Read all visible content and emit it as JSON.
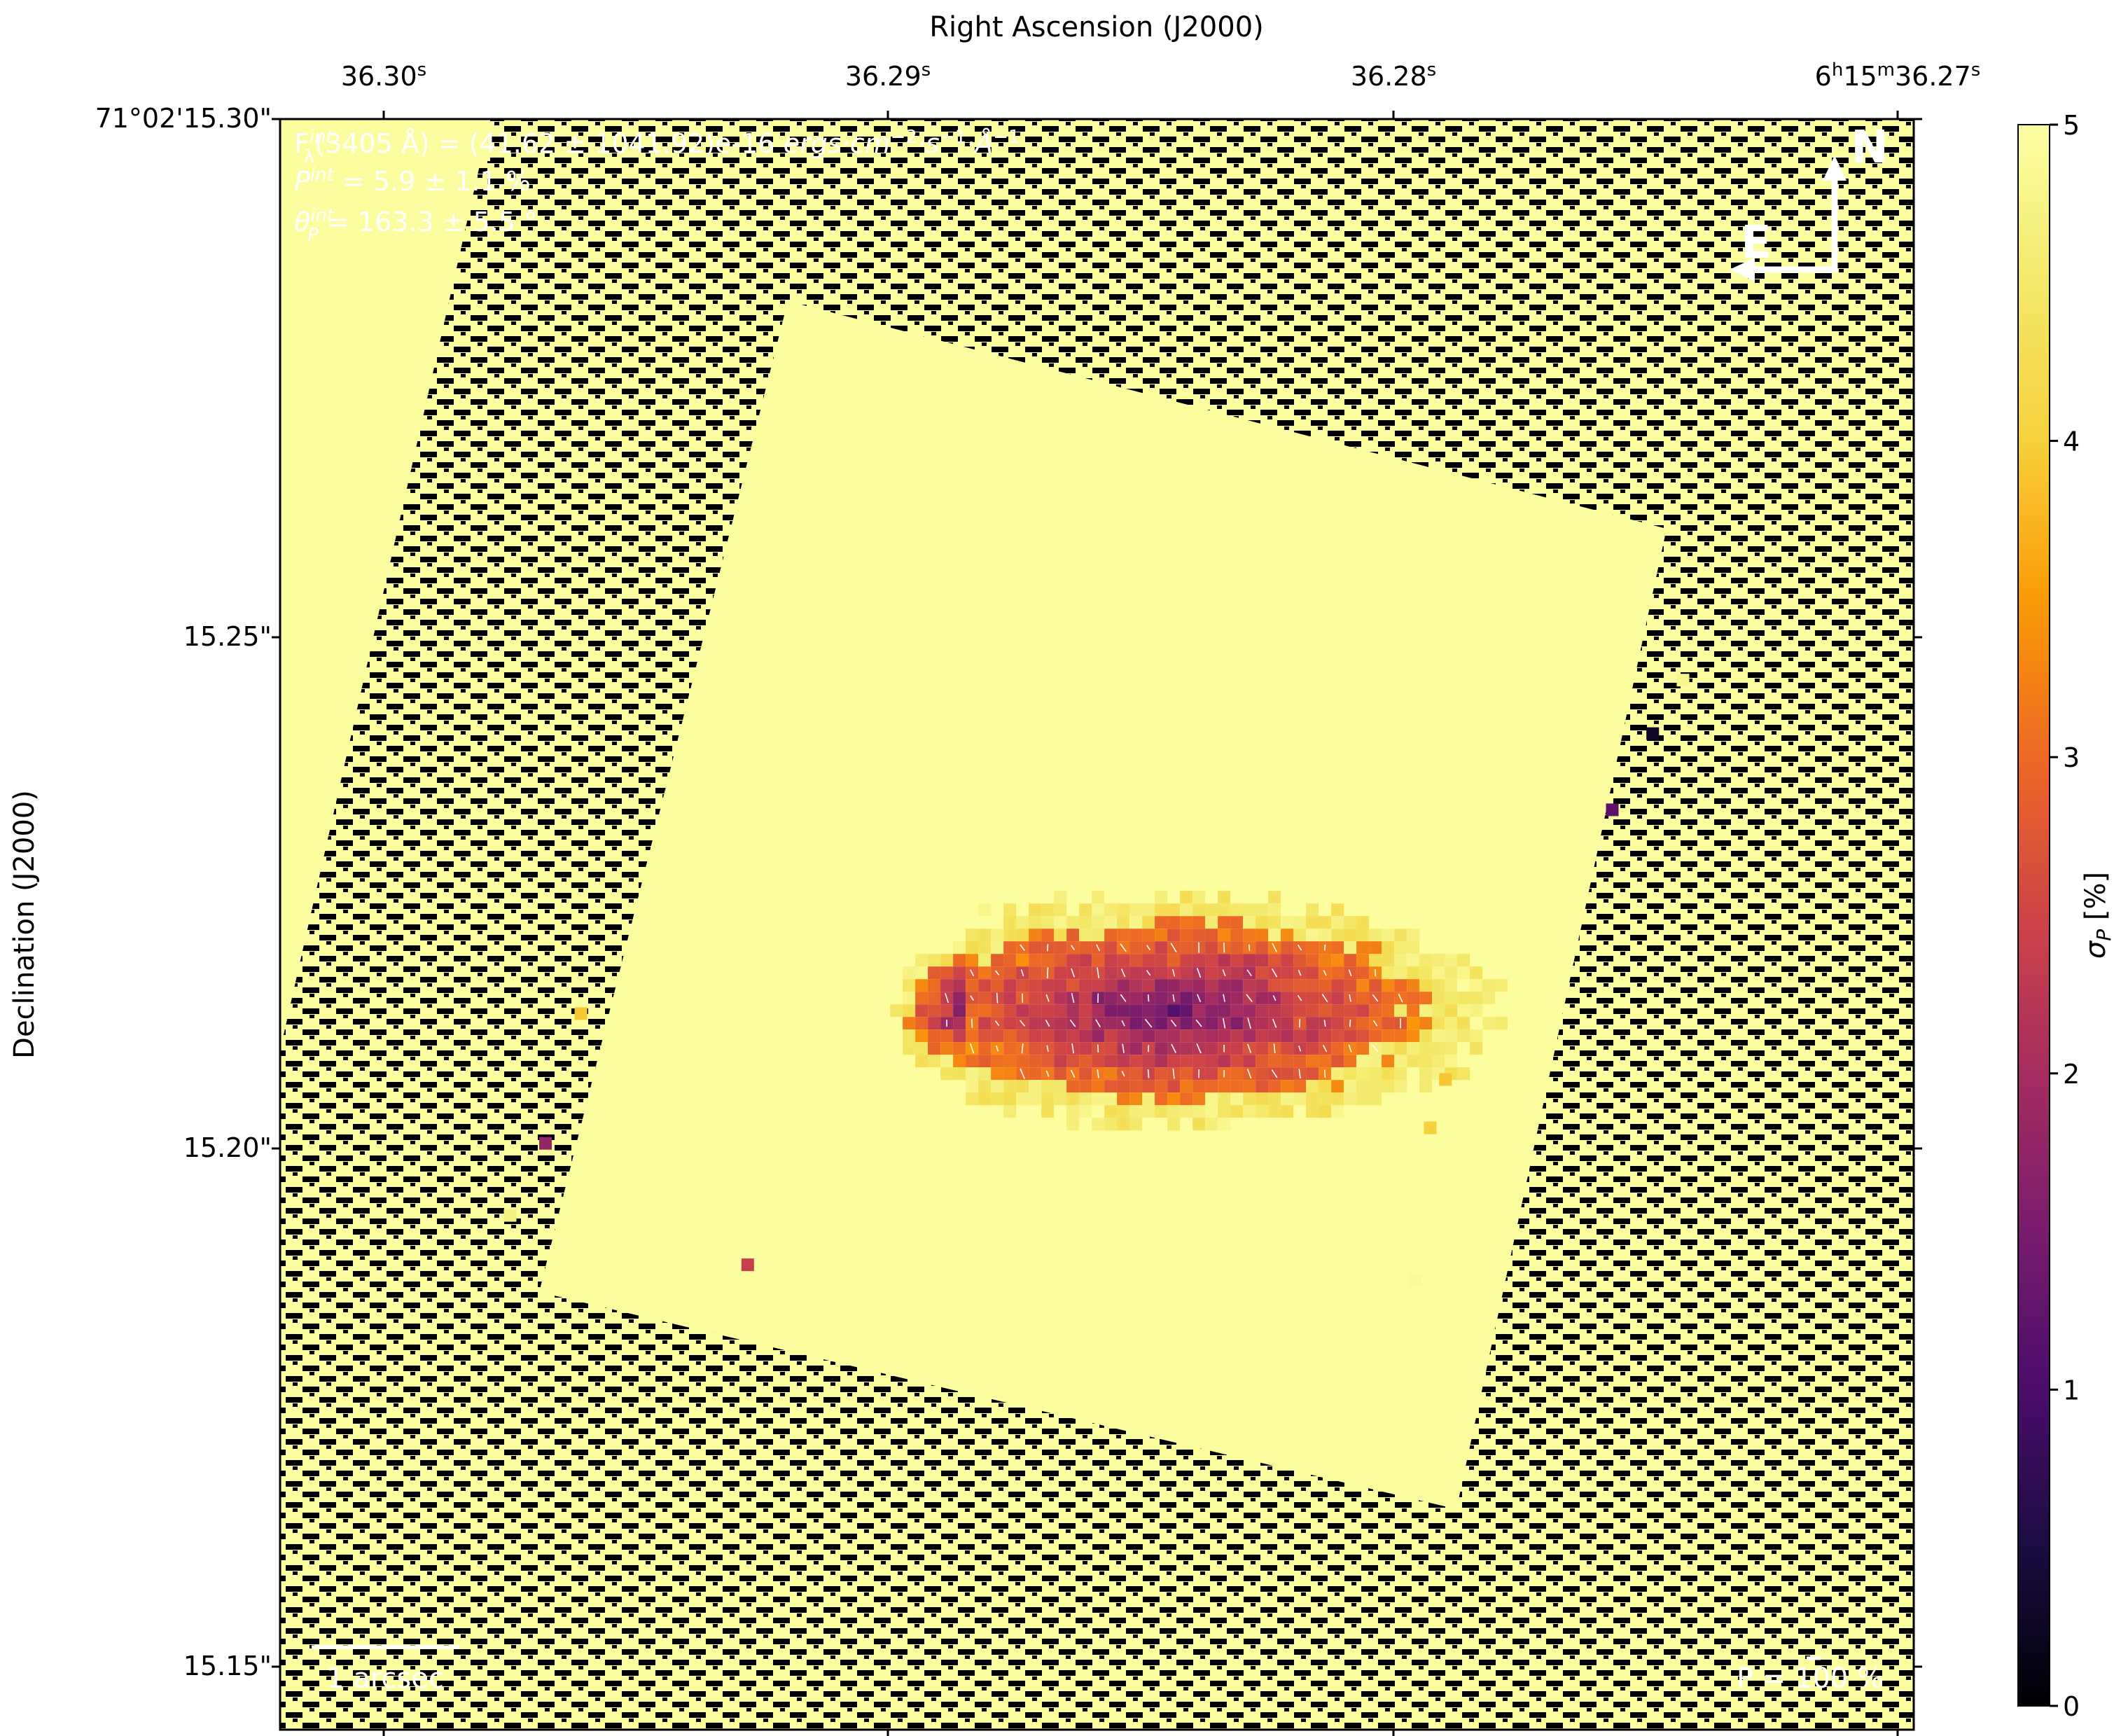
{
  "chart_data": {
    "type": "heatmap",
    "title": "",
    "xlabel": "Right Ascension (J2000)",
    "ylabel": "Declination (J2000)",
    "x_ticks": [
      {
        "label": "36.30",
        "sup": "s",
        "prefix": ""
      },
      {
        "label": "36.29",
        "sup": "s",
        "prefix": ""
      },
      {
        "label": "36.28",
        "sup": "s",
        "prefix": ""
      },
      {
        "label": "36.27",
        "sup": "s",
        "prefix": "6h15m"
      }
    ],
    "y_ticks": [
      "71°02'15.30\"",
      "15.25\"",
      "15.20\"",
      "15.15\""
    ],
    "colorbar": {
      "label": "σP [%]",
      "ticks": [
        "0",
        "1",
        "2",
        "3",
        "4",
        "5"
      ],
      "range": [
        0,
        5
      ],
      "cmap": "inferno"
    },
    "annotations": {
      "flux_line": "Fλint(3405 Å) = (41.62 ± 1041.92)e-16 ergs·cm−2·s−1·Å−1",
      "p_line": "Pint = 5.9 ± 1.1 %",
      "theta_line": "θPint = 163.3 ± 5.5 °",
      "scale_bar": "1 arcsec",
      "pol_scale": "P = 100 %",
      "north": "N",
      "east": "E"
    },
    "colors": {
      "background": "#fbfd9f",
      "mask": "#000000",
      "text_overlay": "#ffffff"
    },
    "regions": {
      "blob_center": {
        "ra": 36.2845,
        "dec": 15.214
      },
      "blob_core_sigma_P": 1.2,
      "blob_edge_sigma_P": 4.2,
      "isolated_pixels": [
        {
          "ra": 36.2743,
          "dec": 15.2455,
          "sigma_P": 4.8
        },
        {
          "ra": 36.2749,
          "dec": 15.2403,
          "sigma_P": 0.3
        },
        {
          "ra": 36.2757,
          "dec": 15.2329,
          "sigma_P": 1.2
        },
        {
          "ra": 36.2961,
          "dec": 15.2131,
          "sigma_P": 3.9
        },
        {
          "ra": 36.2968,
          "dec": 15.2005,
          "sigma_P": 1.8
        },
        {
          "ra": 36.2975,
          "dec": 15.1935,
          "sigma_P": 4.7
        },
        {
          "ra": 36.2928,
          "dec": 15.1887,
          "sigma_P": 2.4
        },
        {
          "ra": 36.279,
          "dec": 15.2067,
          "sigma_P": 3.9
        },
        {
          "ra": 36.2793,
          "dec": 15.202,
          "sigma_P": 4.0
        },
        {
          "ra": 36.2796,
          "dec": 15.1872,
          "sigma_P": 4.9
        }
      ]
    }
  }
}
